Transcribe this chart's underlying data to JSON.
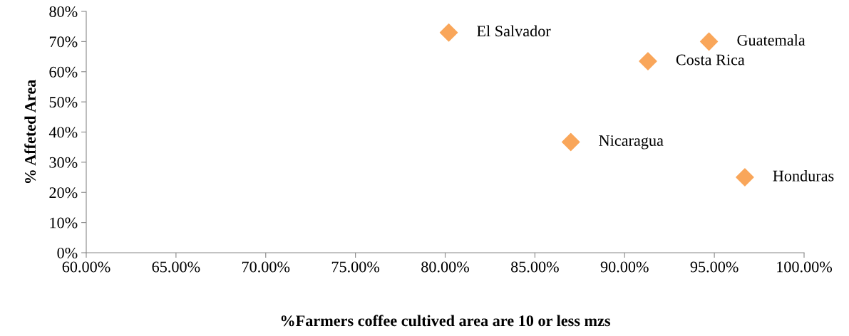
{
  "chart_data": {
    "type": "scatter",
    "xlabel": "%Farmers coffee cultived area are 10 or less mzs",
    "ylabel": "% Affeted Area",
    "x": [
      80.2,
      94.7,
      91.3,
      87.0,
      96.7
    ],
    "series": [
      {
        "color": "#f9a65a",
        "values": [
          73,
          70,
          63.5,
          36.7,
          25
        ]
      }
    ],
    "marker": "diamond",
    "grid": false,
    "legend": false,
    "xlim": [
      60,
      100
    ],
    "xticks": [
      {
        "value": 60,
        "label": "60.00%"
      },
      {
        "value": 65,
        "label": "65.00%"
      },
      {
        "value": 70,
        "label": "70.00%"
      },
      {
        "value": 75,
        "label": "75.00%"
      },
      {
        "value": 80,
        "label": "80.00%"
      },
      {
        "value": 85,
        "label": "85.00%"
      },
      {
        "value": 90,
        "label": "90.00%"
      },
      {
        "value": 95,
        "label": "95.00%"
      },
      {
        "value": 100,
        "label": "100.00%"
      }
    ],
    "ylim": [
      0,
      80
    ],
    "yticks": [
      {
        "value": 0,
        "label": "0%"
      },
      {
        "value": 10,
        "label": "10%"
      },
      {
        "value": 20,
        "label": "20%"
      },
      {
        "value": 30,
        "label": "30%"
      },
      {
        "value": 40,
        "label": "40%"
      },
      {
        "value": 50,
        "label": "50%"
      },
      {
        "value": 60,
        "label": "60%"
      },
      {
        "value": 70,
        "label": "70%"
      },
      {
        "value": 80,
        "label": "80%"
      }
    ],
    "annotations": [
      {
        "text": "El Salvador",
        "x": 80.2,
        "y": 73
      },
      {
        "text": "Guatemala",
        "x": 94.7,
        "y": 70
      },
      {
        "text": "Costa Rica",
        "x": 91.3,
        "y": 63.5
      },
      {
        "text": "Nicaragua",
        "x": 87.0,
        "y": 36.7
      },
      {
        "text": "Honduras",
        "x": 96.7,
        "y": 25
      }
    ]
  }
}
